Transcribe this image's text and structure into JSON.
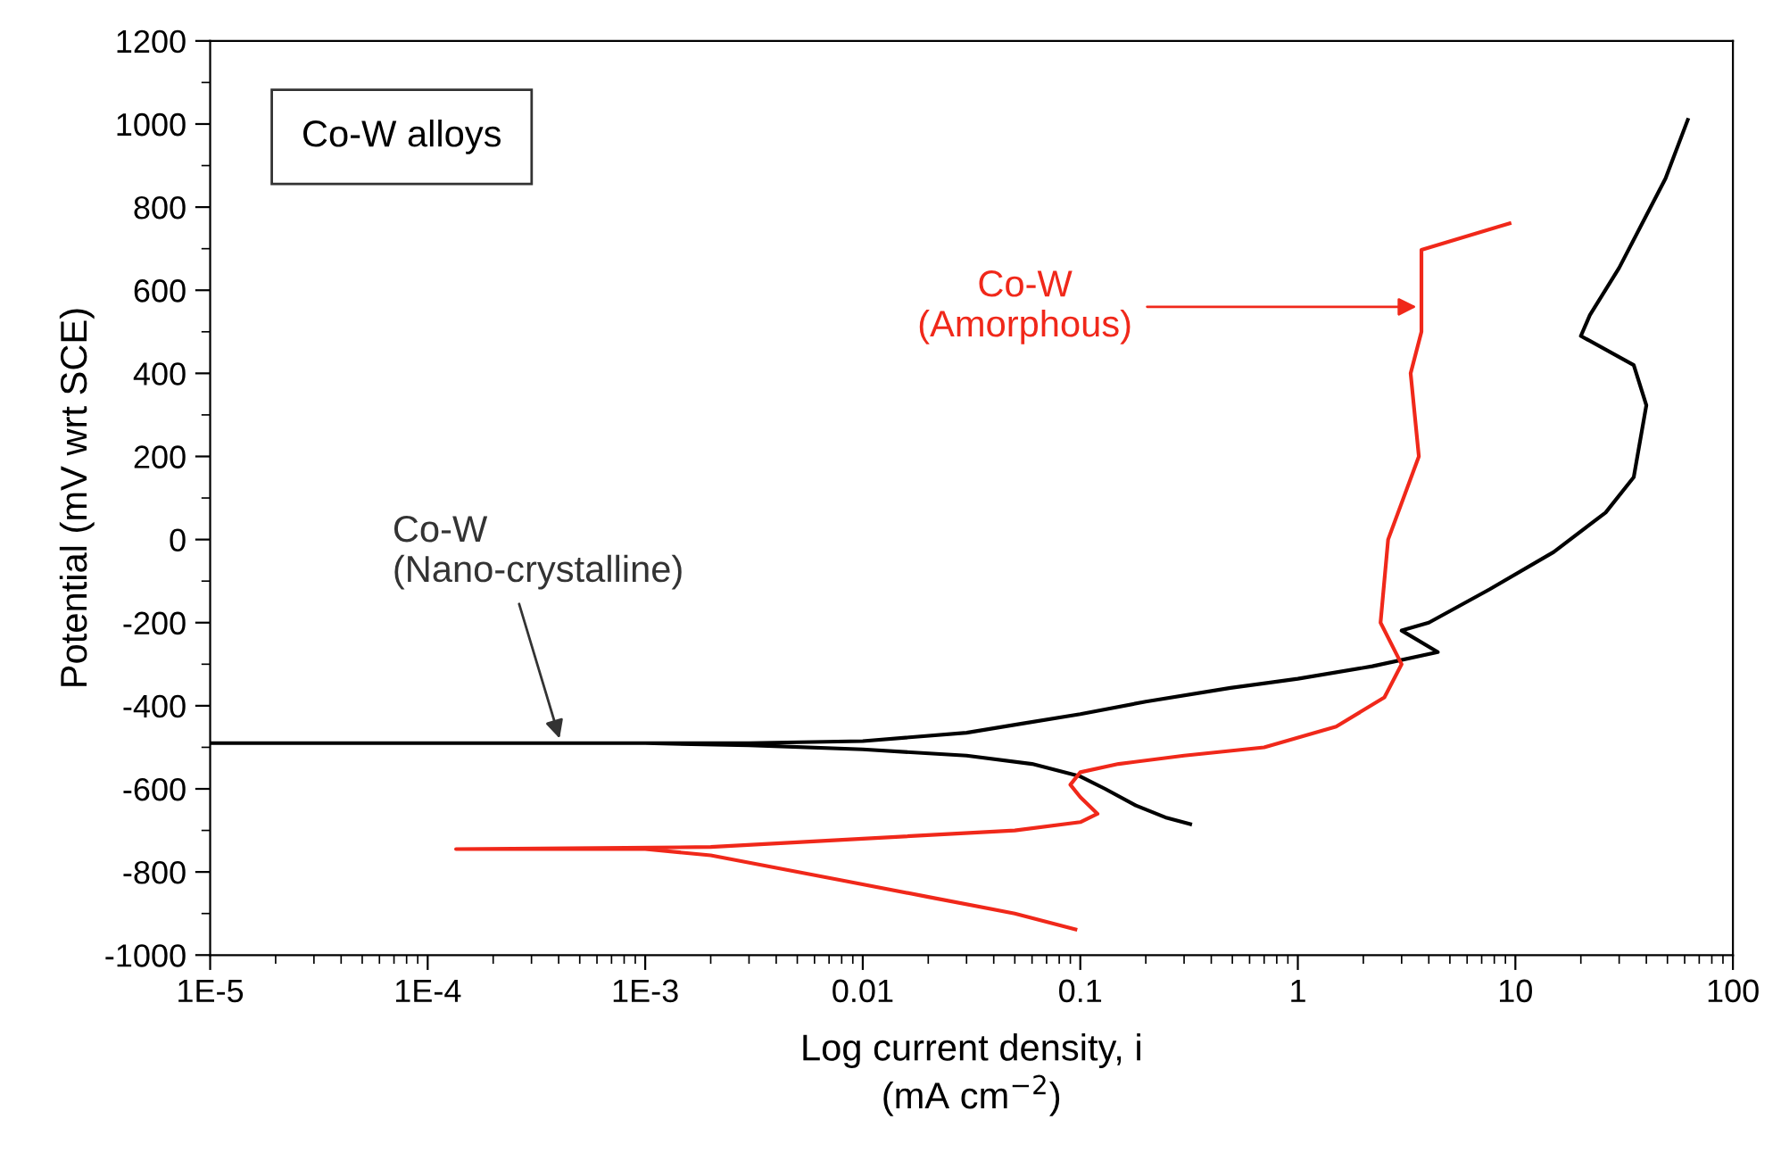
{
  "chart_data": {
    "type": "line",
    "xlabel": "Log current density, i\n(mA cm$^{−2}$)",
    "ylabel": "Potential (mV wrt SCE)",
    "log": "x",
    "xlim": [
      1e-05,
      100
    ],
    "xticks": [
      {
        "value": 1e-05,
        "label": "1E-5"
      },
      {
        "value": 0.0001,
        "label": "1E-4"
      },
      {
        "value": 0.001,
        "label": "1E-3"
      },
      0.01,
      0.1,
      1,
      10,
      100
    ],
    "ylim": [
      -1000,
      1200
    ],
    "yticks": [
      -1000,
      -800,
      -600,
      -400,
      -200,
      0,
      200,
      400,
      600,
      800,
      1000,
      1200
    ],
    "grid": false,
    "marker": "none",
    "line_style": "solid",
    "series": [
      {
        "color": "#000000",
        "x": [
          0.32,
          0.25,
          0.18,
          0.13,
          0.1,
          0.06,
          0.03,
          0.01,
          0.003,
          0.001,
          1e-05,
          0.001,
          0.003,
          0.01,
          0.03,
          0.054,
          0.1,
          0.2,
          0.49,
          1,
          2.2,
          4.4,
          3.0,
          4,
          7.6,
          15,
          26,
          35,
          40,
          35,
          20,
          22,
          30,
          49,
          62
        ],
        "values": [
          -685,
          -670,
          -640,
          -600,
          -570,
          -540,
          -520,
          -505,
          -495,
          -490,
          -490,
          -490,
          -490,
          -485,
          -465,
          -443,
          -420,
          -390,
          -357,
          -335,
          -305,
          -271,
          -219,
          -200,
          -120,
          -30,
          65,
          150,
          323,
          420,
          490,
          540,
          654,
          869,
          1010
        ]
      },
      {
        "color": "#f0281a",
        "x": [
          0.095,
          0.05,
          0.02,
          0.008,
          0.004,
          0.002,
          0.001,
          0.000135,
          0.002,
          0.01,
          0.05,
          0.1,
          0.12,
          0.1,
          0.09,
          0.1,
          0.15,
          0.3,
          0.7,
          1.5,
          2.5,
          3.0,
          2.4,
          2.6,
          3.6,
          3.3,
          3.7,
          3.7,
          3.7,
          9.4
        ],
        "values": [
          -938,
          -900,
          -860,
          -820,
          -790,
          -760,
          -745,
          -745,
          -740,
          -720,
          -700,
          -680,
          -660,
          -620,
          -590,
          -560,
          -540,
          -520,
          -500,
          -450,
          -380,
          -300,
          -200,
          0,
          200,
          400,
          500,
          600,
          697,
          761
        ]
      }
    ],
    "annotations": [
      "Co-W alloys",
      {
        "text": "Co-W\n(Nano-crystalline)",
        "x": 0.00041,
        "y": -490
      },
      {
        "text": "Co-W\n(Amorphous)",
        "x": 3.7,
        "y": 560
      }
    ]
  }
}
